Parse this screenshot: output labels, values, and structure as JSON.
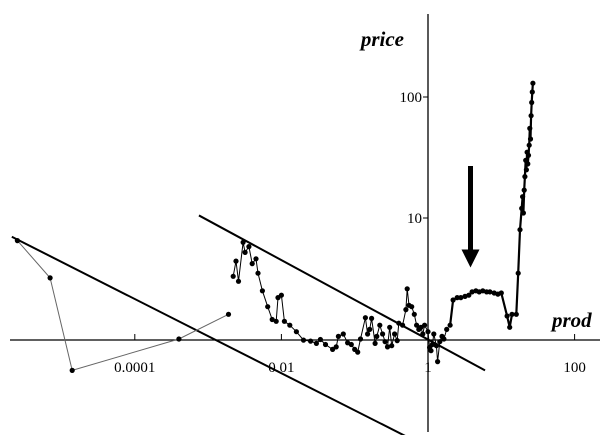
{
  "chart_data": {
    "type": "scatter",
    "xlabel": "prod",
    "ylabel": "price",
    "x_scale": "log",
    "y_scale": "log",
    "xlim": [
      2e-06,
      100
    ],
    "ylim": [
      0.28,
      350
    ],
    "x_ticks": [
      0.0001,
      0.01,
      1,
      100
    ],
    "x_tick_labels": [
      "0.0001",
      "0.01",
      "1",
      "100"
    ],
    "y_ticks": [
      10,
      100
    ],
    "y_tick_labels": [
      "10",
      "100"
    ],
    "grid": false,
    "legend": "none",
    "series": [
      {
        "style": "thin",
        "points": [
          [
            2.5e-06,
            6.5
          ],
          [
            7e-06,
            3.2
          ],
          [
            1.4e-05,
            0.55
          ],
          [
            0.0004,
            1.0
          ],
          [
            0.0019,
            1.6
          ]
        ]
      },
      {
        "style": "normal",
        "points": [
          [
            0.0022,
            3.3
          ],
          [
            0.0024,
            4.4
          ],
          [
            0.0026,
            3.0
          ],
          [
            0.003,
            6.3
          ],
          [
            0.0032,
            5.2
          ],
          [
            0.0036,
            5.8
          ],
          [
            0.004,
            4.2
          ],
          [
            0.0045,
            4.6
          ],
          [
            0.0048,
            3.5
          ],
          [
            0.0055,
            2.5
          ],
          [
            0.0065,
            1.85
          ],
          [
            0.0075,
            1.45
          ],
          [
            0.0085,
            1.4
          ],
          [
            0.009,
            2.2
          ],
          [
            0.01,
            2.3
          ],
          [
            0.011,
            1.4
          ],
          [
            0.013,
            1.3
          ],
          [
            0.016,
            1.15
          ],
          [
            0.02,
            0.98
          ],
          [
            0.025,
            0.96
          ],
          [
            0.03,
            0.92
          ],
          [
            0.034,
            0.99
          ],
          [
            0.04,
            0.9
          ],
          [
            0.05,
            0.82
          ],
          [
            0.056,
            0.86
          ],
          [
            0.06,
            1.05
          ],
          [
            0.07,
            1.1
          ],
          [
            0.08,
            0.93
          ],
          [
            0.09,
            0.9
          ],
          [
            0.1,
            0.82
          ],
          [
            0.11,
            0.78
          ],
          [
            0.12,
            1.0
          ],
          [
            0.14,
            1.5
          ],
          [
            0.15,
            1.1
          ],
          [
            0.16,
            1.2
          ],
          [
            0.17,
            1.48
          ],
          [
            0.19,
            0.92
          ],
          [
            0.2,
            1.05
          ],
          [
            0.22,
            1.3
          ],
          [
            0.24,
            1.1
          ],
          [
            0.26,
            0.95
          ],
          [
            0.28,
            0.86
          ],
          [
            0.3,
            1.25
          ],
          [
            0.32,
            0.88
          ],
          [
            0.35,
            1.1
          ],
          [
            0.38,
            0.97
          ],
          [
            0.4,
            1.35
          ],
          [
            0.45,
            1.3
          ],
          [
            0.5,
            1.75
          ],
          [
            0.52,
            2.6
          ],
          [
            0.55,
            1.9
          ],
          [
            0.6,
            1.85
          ],
          [
            0.65,
            1.6
          ],
          [
            0.7,
            1.3
          ],
          [
            0.75,
            1.2
          ],
          [
            0.8,
            1.25
          ],
          [
            0.85,
            1.1
          ],
          [
            0.9,
            1.3
          ],
          [
            1.0,
            1.15
          ],
          [
            1.05,
            0.85
          ],
          [
            1.1,
            0.8
          ],
          [
            1.15,
            0.9
          ],
          [
            1.2,
            1.1
          ],
          [
            1.3,
            0.88
          ],
          [
            1.35,
            0.65
          ],
          [
            1.45,
            0.95
          ],
          [
            1.55,
            1.05
          ],
          [
            1.65,
            1.0
          ],
          [
            1.8,
            1.2
          ]
        ]
      },
      {
        "style": "thick",
        "points": [
          [
            2.0,
            1.3
          ],
          [
            2.2,
            2.1
          ],
          [
            2.5,
            2.2
          ],
          [
            2.8,
            2.2
          ],
          [
            3.2,
            2.25
          ],
          [
            3.6,
            2.3
          ],
          [
            4.0,
            2.45
          ],
          [
            4.5,
            2.5
          ],
          [
            5.0,
            2.45
          ],
          [
            5.6,
            2.5
          ],
          [
            6.3,
            2.45
          ],
          [
            7.0,
            2.45
          ],
          [
            8.0,
            2.4
          ],
          [
            9.0,
            2.35
          ],
          [
            10.0,
            2.4
          ],
          [
            12.0,
            1.55
          ],
          [
            13.0,
            1.25
          ],
          [
            14.0,
            1.6
          ],
          [
            16.0,
            1.6
          ],
          [
            17.0,
            3.5
          ],
          [
            18.0,
            8.0
          ],
          [
            19.0,
            12.0
          ],
          [
            19.5,
            15.0
          ],
          [
            20.0,
            11.0
          ],
          [
            20.5,
            17.0
          ],
          [
            21.0,
            22.0
          ],
          [
            21.5,
            30.0
          ],
          [
            22.0,
            25.0
          ],
          [
            22.5,
            35.0
          ],
          [
            23.0,
            28.0
          ],
          [
            23.5,
            33.0
          ],
          [
            24.0,
            40.0
          ],
          [
            24.5,
            55.0
          ],
          [
            25.0,
            45.0
          ],
          [
            25.5,
            70.0
          ],
          [
            26.0,
            90.0
          ],
          [
            26.5,
            110.0
          ],
          [
            27.0,
            130.0
          ]
        ]
      }
    ],
    "trend_lines": [
      {
        "from": [
          2.1e-06,
          7.0
        ],
        "to": [
          1.2,
          0.12
        ]
      },
      {
        "from": [
          0.00075,
          10.5
        ],
        "to": [
          6.0,
          0.55
        ]
      }
    ],
    "annotations": [
      {
        "type": "arrow",
        "direction": "down",
        "at": [
          3.8,
          3.9
        ]
      }
    ]
  }
}
